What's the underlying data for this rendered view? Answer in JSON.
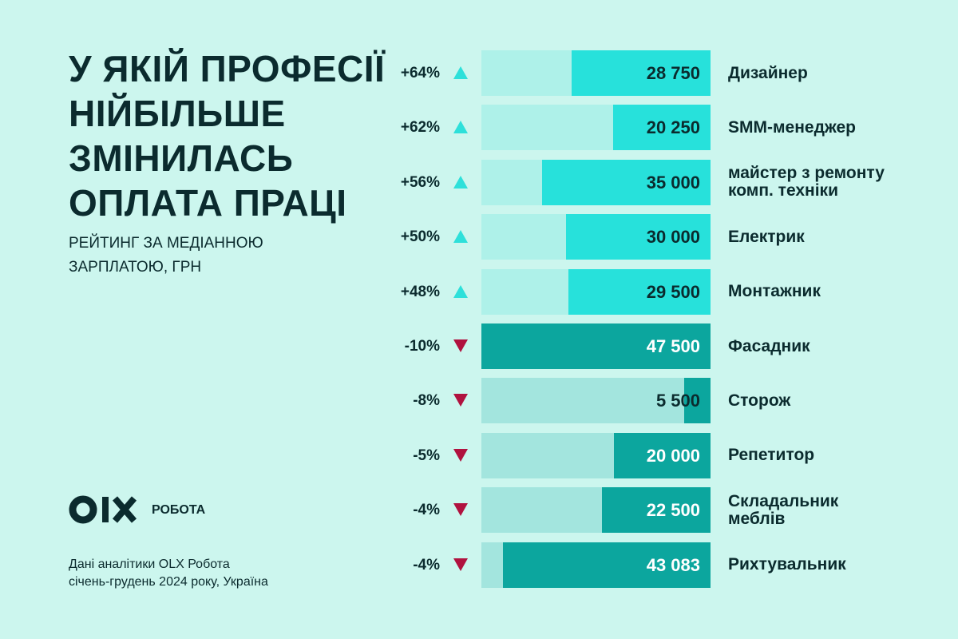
{
  "chart_data": {
    "type": "bar",
    "title": [
      "У ЯКІЙ ПРОФЕСІЇ",
      "НІЙБІЛЬШЕ",
      "ЗМІНИЛАСЬ",
      "ОПЛАТА ПРАЦІ"
    ],
    "subtitle": [
      "РЕЙТИНГ ЗА МЕДІАННОЮ",
      "ЗАРПЛАТОЮ, ГРН"
    ],
    "brand": "РОБОТА",
    "source": [
      "Дані аналітики OLX Робота",
      "січень-грудень 2024 року, Україна"
    ],
    "categories": [
      "Дизайнер",
      "SMM-менеджер",
      "майстер з ремонту\nкомп. техніки",
      "Електрик",
      "Монтажник",
      "Фасадник",
      "Сторож",
      "Репетитор",
      "Складальник\nмеблів",
      "Рихтувальник"
    ],
    "values": [
      28750,
      20250,
      35000,
      30000,
      29500,
      47500,
      5500,
      20000,
      22500,
      43083
    ],
    "value_labels": [
      "28 750",
      "20 250",
      "35 000",
      "30 000",
      "29 500",
      "47 500",
      "5 500",
      "20 000",
      "22 500",
      "43 083"
    ],
    "change": [
      64,
      62,
      56,
      50,
      48,
      -10,
      -8,
      -5,
      -4,
      -4
    ],
    "change_labels": [
      "+64%",
      "+62%",
      "+56%",
      "+50%",
      "+48%",
      "-10%",
      "-8%",
      "-5%",
      "-4%",
      "-4%"
    ],
    "xlim": [
      0,
      47500
    ],
    "up_color": "#27e1db",
    "up_track": "#aef1e9",
    "down_color": "#0ca69e",
    "down_track": "#a3e5de",
    "up_arrow": "#2ee0da",
    "down_arrow": "#b0123f"
  }
}
